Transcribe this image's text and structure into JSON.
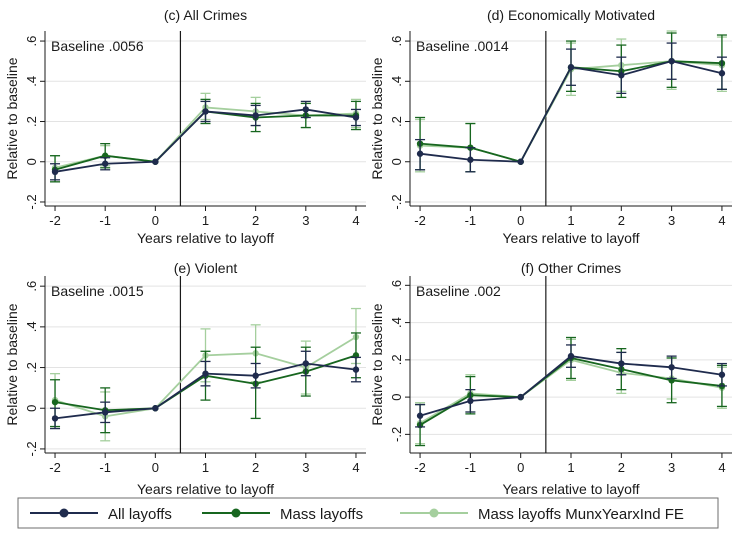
{
  "figure": {
    "legend": {
      "placement": "bottom",
      "items": [
        {
          "label": "All layoffs",
          "color": "#1f2b4d"
        },
        {
          "label": "Mass layoffs",
          "color": "#17661f"
        },
        {
          "label": "Mass layoffs MunxYearxInd FE",
          "color": "#a5cf9e"
        }
      ]
    }
  },
  "chart_data": [
    {
      "type": "line",
      "title": "(c) All Crimes",
      "annotation": "Baseline .0056",
      "xlabel": "Years relative to layoff",
      "ylabel": "Relative to baseline",
      "x": [
        -2,
        -1,
        0,
        1,
        2,
        3,
        4
      ],
      "xticks": [
        "-2",
        "-1",
        "0",
        "1",
        "2",
        "3",
        "4"
      ],
      "yticks": [
        -0.2,
        0,
        0.2,
        0.4,
        0.6
      ],
      "ytick_labels": [
        "-.2",
        "0",
        ".2",
        ".4",
        ".6"
      ],
      "ylim": [
        -0.22,
        0.65
      ],
      "vline_x": 0.5,
      "grid": true,
      "series": [
        {
          "name": "All layoffs",
          "values": [
            -0.05,
            -0.01,
            0,
            0.25,
            0.23,
            0.26,
            0.22
          ],
          "ci": [
            [
              -0.09,
              -0.01
            ],
            [
              -0.04,
              0.02
            ],
            [
              0,
              0
            ],
            [
              0.2,
              0.3
            ],
            [
              0.18,
              0.28
            ],
            [
              0.22,
              0.3
            ],
            [
              0.18,
              0.26
            ]
          ]
        },
        {
          "name": "Mass layoffs",
          "values": [
            -0.04,
            0.03,
            0,
            0.25,
            0.22,
            0.23,
            0.23
          ],
          "ci": [
            [
              -0.1,
              0.03
            ],
            [
              -0.03,
              0.09
            ],
            [
              0,
              0
            ],
            [
              0.19,
              0.31
            ],
            [
              0.15,
              0.29
            ],
            [
              0.17,
              0.29
            ],
            [
              0.16,
              0.3
            ]
          ]
        },
        {
          "name": "Mass layoffs MunxYearxInd FE",
          "values": [
            -0.03,
            0.03,
            0,
            0.27,
            0.25,
            0.23,
            0.24
          ],
          "ci": [
            [
              -0.1,
              0.03
            ],
            [
              -0.02,
              0.08
            ],
            [
              0,
              0
            ],
            [
              0.21,
              0.34
            ],
            [
              0.18,
              0.32
            ],
            [
              0.17,
              0.29
            ],
            [
              0.17,
              0.31
            ]
          ]
        }
      ]
    },
    {
      "type": "line",
      "title": "(d) Economically Motivated",
      "annotation": "Baseline .0014",
      "xlabel": "Years relative to layoff",
      "ylabel": "Relative to baseline",
      "x": [
        -2,
        -1,
        0,
        1,
        2,
        3,
        4
      ],
      "xticks": [
        "-2",
        "-1",
        "0",
        "1",
        "2",
        "3",
        "4"
      ],
      "yticks": [
        -0.2,
        0,
        0.2,
        0.4,
        0.6
      ],
      "ytick_labels": [
        "-.2",
        "0",
        ".2",
        ".4",
        ".6"
      ],
      "ylim": [
        -0.22,
        0.65
      ],
      "vline_x": 0.5,
      "grid": true,
      "series": [
        {
          "name": "All layoffs",
          "values": [
            0.04,
            0.01,
            0,
            0.47,
            0.43,
            0.5,
            0.44
          ],
          "ci": [
            [
              -0.04,
              0.11
            ],
            [
              -0.05,
              0.07
            ],
            [
              0,
              0
            ],
            [
              0.38,
              0.56
            ],
            [
              0.34,
              0.52
            ],
            [
              0.41,
              0.59
            ],
            [
              0.36,
              0.52
            ]
          ]
        },
        {
          "name": "Mass layoffs",
          "values": [
            0.09,
            0.07,
            0,
            0.47,
            0.45,
            0.5,
            0.49
          ],
          "ci": [
            [
              -0.04,
              0.22
            ],
            [
              -0.05,
              0.19
            ],
            [
              0,
              0
            ],
            [
              0.35,
              0.6
            ],
            [
              0.32,
              0.58
            ],
            [
              0.37,
              0.64
            ],
            [
              0.36,
              0.63
            ]
          ]
        },
        {
          "name": "Mass layoffs MunxYearxInd FE",
          "values": [
            0.08,
            0.07,
            0,
            0.46,
            0.48,
            0.5,
            0.48
          ],
          "ci": [
            [
              -0.05,
              0.21
            ],
            [
              -0.05,
              0.19
            ],
            [
              0,
              0
            ],
            [
              0.33,
              0.59
            ],
            [
              0.35,
              0.61
            ],
            [
              0.36,
              0.65
            ],
            [
              0.35,
              0.62
            ]
          ]
        }
      ]
    },
    {
      "type": "line",
      "title": "(e) Violent",
      "annotation": "Baseline .0015",
      "xlabel": "Years relative to layoff",
      "ylabel": "Relative to baseline",
      "x": [
        -2,
        -1,
        0,
        1,
        2,
        3,
        4
      ],
      "xticks": [
        "-2",
        "-1",
        "0",
        "1",
        "2",
        "3",
        "4"
      ],
      "yticks": [
        -0.2,
        0,
        0.2,
        0.4,
        0.6
      ],
      "ytick_labels": [
        "-.2",
        "0",
        ".2",
        ".4",
        ".6"
      ],
      "ylim": [
        -0.22,
        0.65
      ],
      "vline_x": 0.5,
      "grid": true,
      "series": [
        {
          "name": "All layoffs",
          "values": [
            -0.05,
            -0.02,
            0,
            0.17,
            0.16,
            0.22,
            0.19
          ],
          "ci": [
            [
              -0.1,
              0.0
            ],
            [
              -0.07,
              0.03
            ],
            [
              0,
              0
            ],
            [
              0.11,
              0.23
            ],
            [
              0.1,
              0.22
            ],
            [
              0.16,
              0.28
            ],
            [
              0.13,
              0.25
            ]
          ]
        },
        {
          "name": "Mass layoffs",
          "values": [
            0.03,
            -0.01,
            0,
            0.16,
            0.12,
            0.18,
            0.26
          ],
          "ci": [
            [
              -0.09,
              0.14
            ],
            [
              -0.12,
              0.1
            ],
            [
              0,
              0
            ],
            [
              0.04,
              0.28
            ],
            [
              -0.05,
              0.3
            ],
            [
              0.06,
              0.3
            ],
            [
              0.15,
              0.37
            ]
          ]
        },
        {
          "name": "Mass layoffs MunxYearxInd FE",
          "values": [
            0.04,
            -0.04,
            0,
            0.26,
            0.27,
            0.2,
            0.35
          ],
          "ci": [
            [
              -0.09,
              0.17
            ],
            [
              -0.16,
              0.08
            ],
            [
              0,
              0
            ],
            [
              0.13,
              0.39
            ],
            [
              0.13,
              0.41
            ],
            [
              0.07,
              0.33
            ],
            [
              0.22,
              0.49
            ]
          ]
        }
      ]
    },
    {
      "type": "line",
      "title": "(f) Other Crimes",
      "annotation": "Baseline .002",
      "xlabel": "Years relative to layoff",
      "ylabel": "Relative to baseline",
      "x": [
        -2,
        -1,
        0,
        1,
        2,
        3,
        4
      ],
      "xticks": [
        "-2",
        "-1",
        "0",
        "1",
        "2",
        "3",
        "4"
      ],
      "yticks": [
        -0.2,
        0,
        0.2,
        0.4,
        0.6
      ],
      "ytick_labels": [
        "-.2",
        "0",
        ".2",
        ".4",
        ".6"
      ],
      "ylim": [
        -0.3,
        0.65
      ],
      "vline_x": 0.5,
      "grid": true,
      "series": [
        {
          "name": "All layoffs",
          "values": [
            -0.1,
            -0.02,
            0,
            0.22,
            0.18,
            0.16,
            0.12
          ],
          "ci": [
            [
              -0.16,
              -0.04
            ],
            [
              -0.08,
              0.04
            ],
            [
              0,
              0
            ],
            [
              0.16,
              0.28
            ],
            [
              0.12,
              0.24
            ],
            [
              0.1,
              0.22
            ],
            [
              0.06,
              0.18
            ]
          ]
        },
        {
          "name": "Mass layoffs",
          "values": [
            -0.15,
            0.01,
            0,
            0.21,
            0.15,
            0.09,
            0.06
          ],
          "ci": [
            [
              -0.26,
              -0.04
            ],
            [
              -0.09,
              0.11
            ],
            [
              0,
              0
            ],
            [
              0.1,
              0.32
            ],
            [
              0.04,
              0.26
            ],
            [
              -0.03,
              0.21
            ],
            [
              -0.05,
              0.17
            ]
          ]
        },
        {
          "name": "Mass layoffs MunxYearxInd FE",
          "values": [
            -0.14,
            0.02,
            0,
            0.2,
            0.13,
            0.1,
            0.05
          ],
          "ci": [
            [
              -0.25,
              -0.03
            ],
            [
              -0.08,
              0.12
            ],
            [
              0,
              0
            ],
            [
              0.09,
              0.31
            ],
            [
              0.02,
              0.24
            ],
            [
              -0.01,
              0.21
            ],
            [
              -0.06,
              0.16
            ]
          ]
        }
      ]
    }
  ]
}
